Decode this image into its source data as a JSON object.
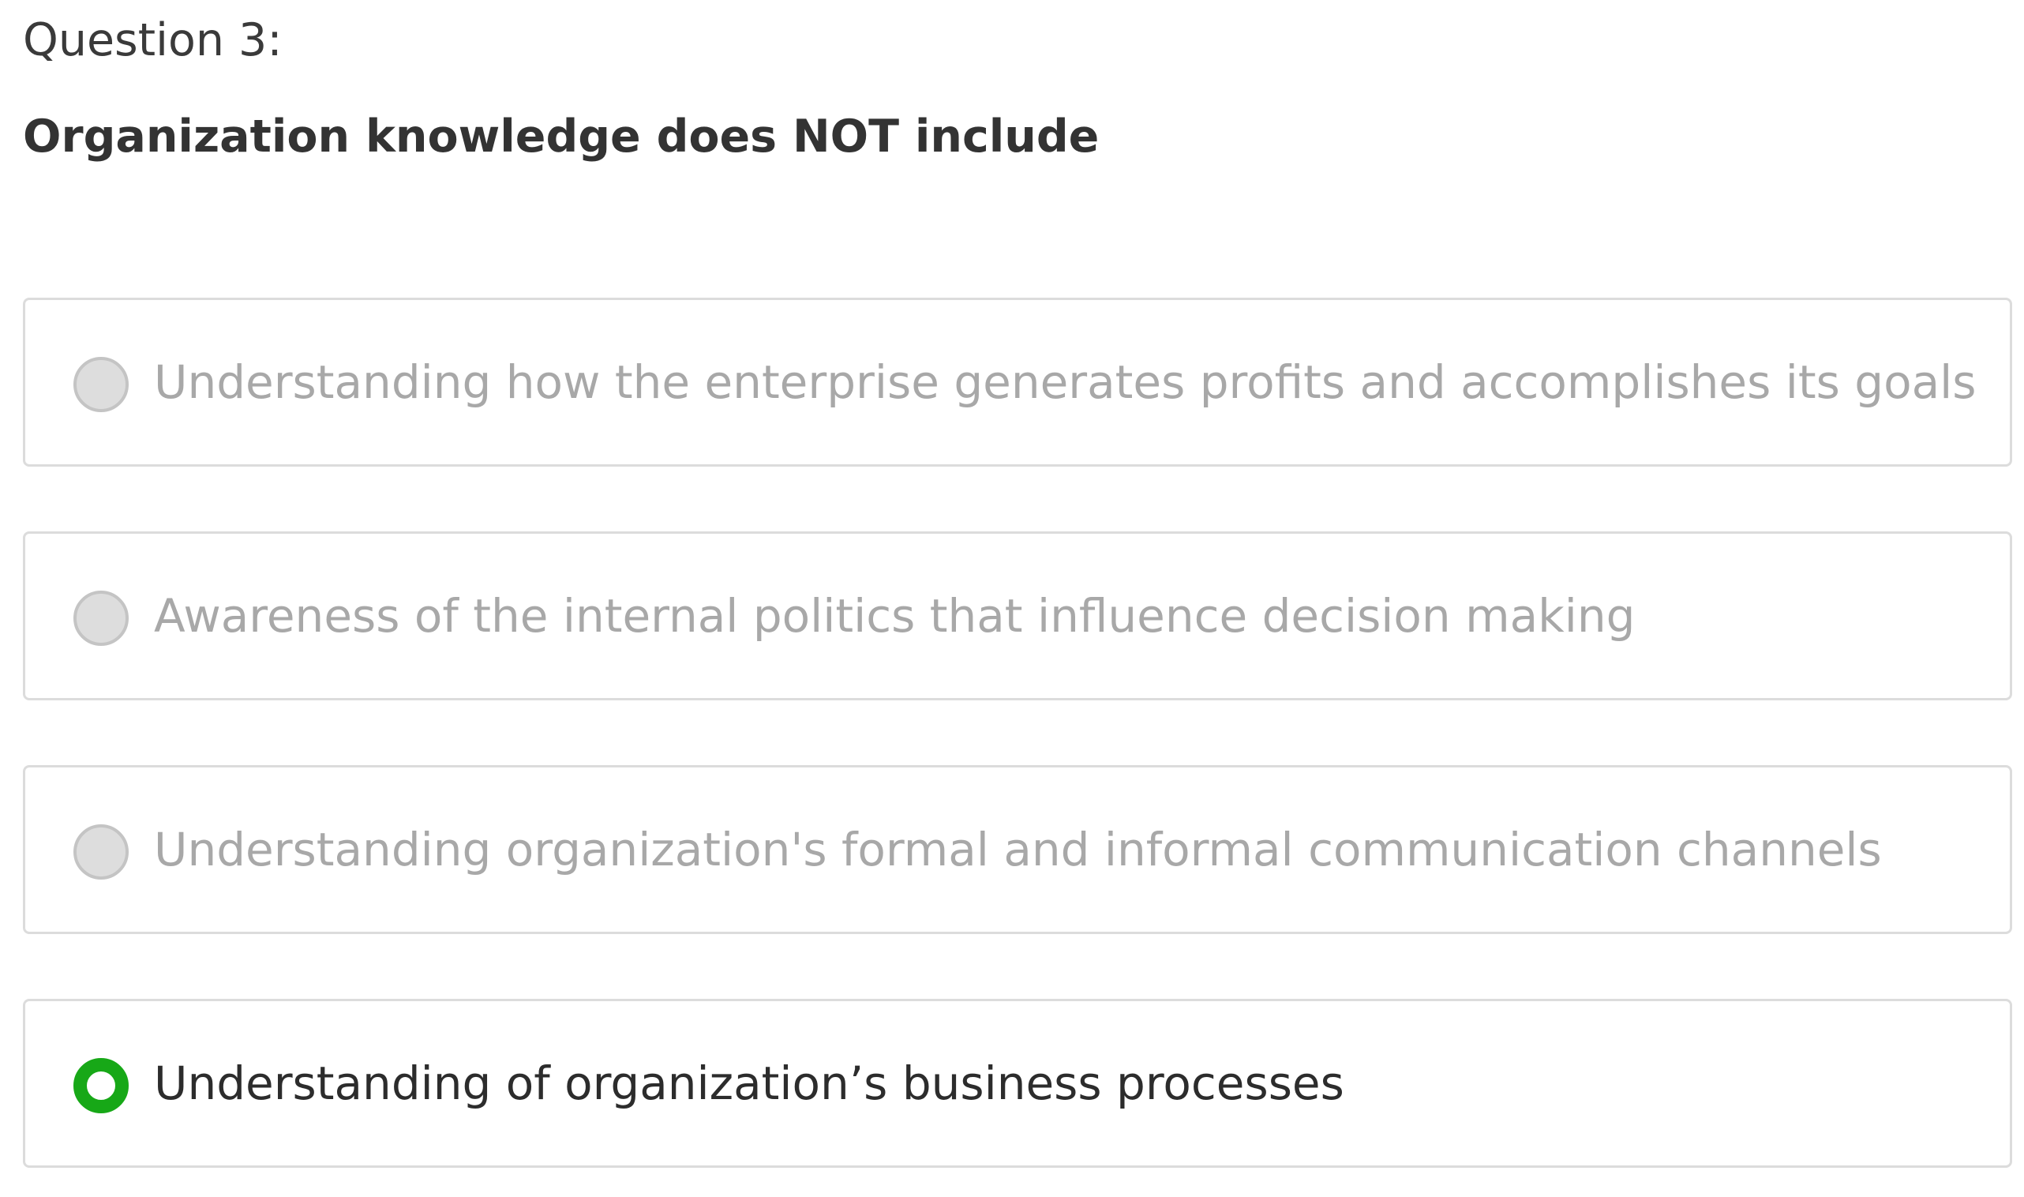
{
  "question": {
    "number_label": "Question 3:",
    "text": "Organization knowledge does NOT include"
  },
  "options": [
    {
      "label": "Understanding how the enterprise generates profits and accomplishes its goals",
      "selected": false
    },
    {
      "label": "Awareness of the internal politics that influence decision making",
      "selected": false
    },
    {
      "label": "Understanding organization's formal and informal communication channels",
      "selected": false
    },
    {
      "label": "Understanding of organization’s business processes",
      "selected": true
    }
  ],
  "colors": {
    "selected_accent": "#17a817",
    "unselected_radio": "#dddddd",
    "border": "#dcdcdc",
    "muted_text": "#a8a8a8",
    "active_text": "#2c2c2c"
  }
}
